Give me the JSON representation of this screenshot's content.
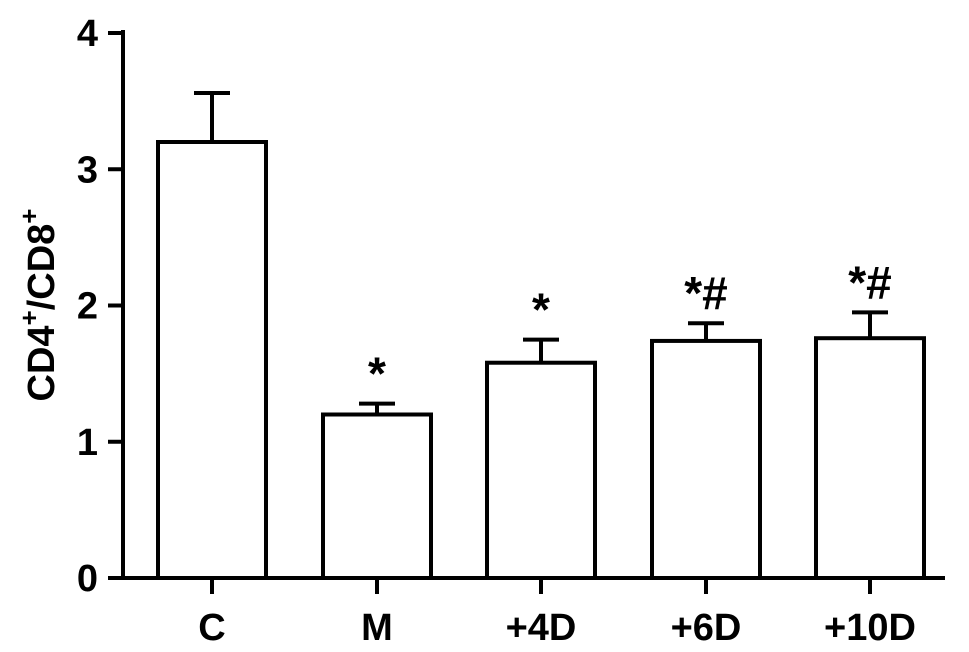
{
  "chart_data": {
    "type": "bar",
    "categories": [
      "C",
      "M",
      "+4D",
      "+6D",
      "+10D"
    ],
    "values": [
      3.2,
      1.2,
      1.58,
      1.74,
      1.76
    ],
    "errors": [
      0.36,
      0.08,
      0.17,
      0.13,
      0.19
    ],
    "annotations": [
      "",
      "*",
      "*",
      "*#",
      "*#"
    ],
    "ylabel_parts": [
      "CD4",
      "+",
      "/CD8",
      "+"
    ],
    "ylim": [
      0,
      4
    ],
    "yticks": [
      0,
      1,
      2,
      3,
      4
    ],
    "xlabel": "",
    "title": "",
    "grid": false,
    "colors": {
      "bar_fill": "#ffffff",
      "bar_stroke": "#000000"
    }
  }
}
